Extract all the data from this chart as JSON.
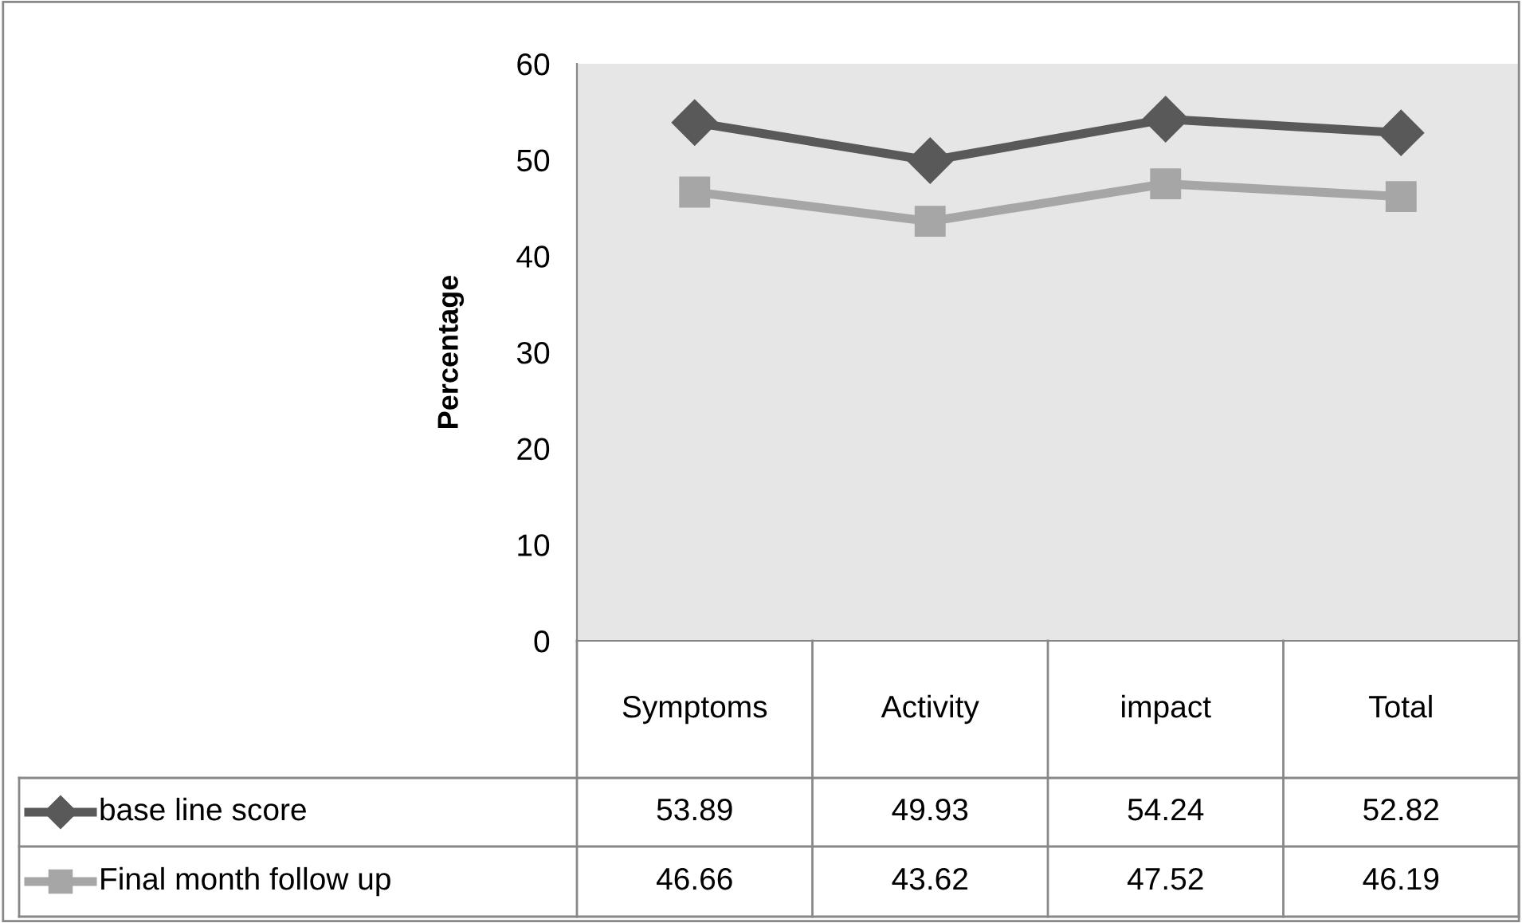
{
  "chart_data": {
    "type": "line",
    "ylabel": "Percentage",
    "categories": [
      "Symptoms",
      "Activity",
      "impact",
      "Total"
    ],
    "series": [
      {
        "name": "base line score",
        "color": "#595959",
        "marker": "diamond",
        "values": [
          53.89,
          49.93,
          54.24,
          52.82
        ]
      },
      {
        "name": "Final month follow up",
        "color": "#a6a6a6",
        "marker": "square",
        "values": [
          46.66,
          43.62,
          47.52,
          46.19
        ]
      }
    ],
    "ylim": [
      0,
      60
    ],
    "yticks": [
      0,
      10,
      20,
      30,
      40,
      50,
      60
    ],
    "grid": false,
    "legend": "bottom",
    "data_labels": true
  }
}
